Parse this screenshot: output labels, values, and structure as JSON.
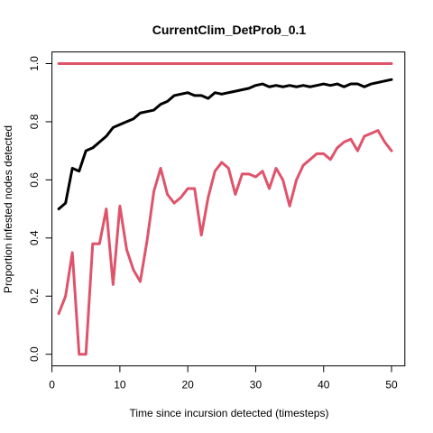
{
  "chart_data": {
    "type": "line",
    "title": "CurrentClim_DetProb_0.1",
    "xlabel": "Time since incursion detected (timesteps)",
    "ylabel": "Proportion infested nodes detected",
    "xlim": [
      0,
      51.96
    ],
    "ylim": [
      -0.04,
      1.04
    ],
    "xticks": [
      0,
      10,
      20,
      30,
      40,
      50
    ],
    "yticks": [
      0.0,
      0.2,
      0.4,
      0.6,
      0.8,
      1.0
    ],
    "ytick_labels": [
      "0.0",
      "0.2",
      "0.4",
      "0.6",
      "0.8",
      "1.0"
    ],
    "grid": false,
    "legend": "none",
    "series": [
      {
        "color": "#DF536B",
        "x": [
          1,
          2,
          3,
          4,
          5,
          6,
          7,
          8,
          9,
          10,
          11,
          12,
          13,
          14,
          15,
          16,
          17,
          18,
          19,
          20,
          21,
          22,
          23,
          24,
          25,
          26,
          27,
          28,
          29,
          30,
          31,
          32,
          33,
          34,
          35,
          36,
          37,
          38,
          39,
          40,
          41,
          42,
          43,
          44,
          45,
          46,
          47,
          48,
          49,
          50
        ],
        "y": [
          1,
          1,
          1,
          1,
          1,
          1,
          1,
          1,
          1,
          1,
          1,
          1,
          1,
          1,
          1,
          1,
          1,
          1,
          1,
          1,
          1,
          1,
          1,
          1,
          1,
          1,
          1,
          1,
          1,
          1,
          1,
          1,
          1,
          1,
          1,
          1,
          1,
          1,
          1,
          1,
          1,
          1,
          1,
          1,
          1,
          1,
          1,
          1,
          1,
          1
        ]
      },
      {
        "color": "#000000",
        "x": [
          1,
          2,
          3,
          4,
          5,
          6,
          7,
          8,
          9,
          10,
          11,
          12,
          13,
          14,
          15,
          16,
          17,
          18,
          19,
          20,
          21,
          22,
          23,
          24,
          25,
          26,
          27,
          28,
          29,
          30,
          31,
          32,
          33,
          34,
          35,
          36,
          37,
          38,
          39,
          40,
          41,
          42,
          43,
          44,
          45,
          46,
          47,
          48,
          49,
          50
        ],
        "y": [
          0.5,
          0.52,
          0.64,
          0.63,
          0.7,
          0.71,
          0.73,
          0.75,
          0.78,
          0.79,
          0.8,
          0.81,
          0.83,
          0.835,
          0.84,
          0.86,
          0.87,
          0.89,
          0.895,
          0.9,
          0.89,
          0.89,
          0.88,
          0.9,
          0.895,
          0.9,
          0.905,
          0.91,
          0.915,
          0.925,
          0.93,
          0.92,
          0.925,
          0.92,
          0.925,
          0.92,
          0.925,
          0.92,
          0.925,
          0.93,
          0.925,
          0.93,
          0.92,
          0.93,
          0.93,
          0.92,
          0.93,
          0.935,
          0.94,
          0.945
        ]
      },
      {
        "color": "#DF536B",
        "x": [
          1,
          2,
          3,
          4,
          5,
          6,
          7,
          8,
          9,
          10,
          11,
          12,
          13,
          14,
          15,
          16,
          17,
          18,
          19,
          20,
          21,
          22,
          23,
          24,
          25,
          26,
          27,
          28,
          29,
          30,
          31,
          32,
          33,
          34,
          35,
          36,
          37,
          38,
          39,
          40,
          41,
          42,
          43,
          44,
          45,
          46,
          47,
          48,
          49,
          50
        ],
        "y": [
          0.14,
          0.2,
          0.35,
          0.0,
          0.0,
          0.38,
          0.38,
          0.5,
          0.24,
          0.51,
          0.36,
          0.29,
          0.25,
          0.39,
          0.56,
          0.64,
          0.55,
          0.52,
          0.54,
          0.57,
          0.57,
          0.41,
          0.54,
          0.63,
          0.66,
          0.64,
          0.55,
          0.62,
          0.62,
          0.61,
          0.63,
          0.57,
          0.64,
          0.6,
          0.51,
          0.6,
          0.65,
          0.67,
          0.69,
          0.69,
          0.67,
          0.71,
          0.73,
          0.74,
          0.7,
          0.75,
          0.76,
          0.77,
          0.73,
          0.7
        ]
      }
    ]
  }
}
